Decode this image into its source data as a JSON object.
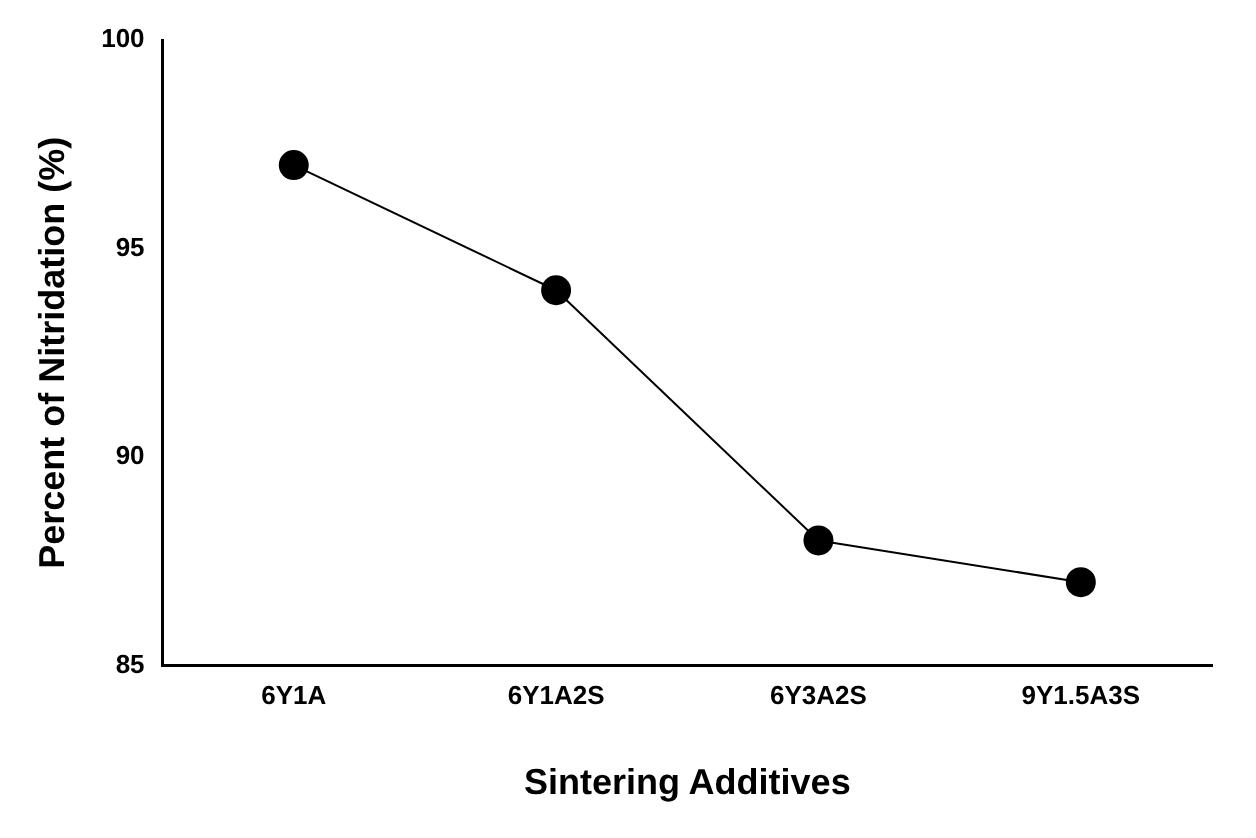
{
  "chart_data": {
    "type": "line",
    "xlabel": "Sintering Additives",
    "ylabel": "Percent of Nitridation (%)",
    "categories": [
      "6Y1A",
      "6Y1A2S",
      "6Y3A2S",
      "9Y1.5A3S"
    ],
    "values": [
      97,
      94,
      88,
      87
    ],
    "color": "#000000",
    "ylim": [
      85,
      100
    ],
    "yticks": [
      85,
      90,
      95,
      100
    ],
    "marker": "circle",
    "line_style": "solid"
  }
}
